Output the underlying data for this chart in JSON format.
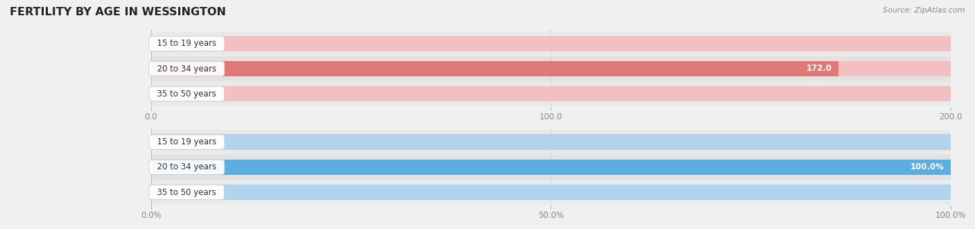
{
  "title": "FERTILITY BY AGE IN WESSINGTON",
  "source": "Source: ZipAtlas.com",
  "top_chart": {
    "categories": [
      "15 to 19 years",
      "20 to 34 years",
      "35 to 50 years"
    ],
    "values": [
      0.0,
      172.0,
      0.0
    ],
    "bar_color_full": "#e07878",
    "bar_color_light": "#f2c0c0",
    "xlim": [
      0,
      200.0
    ],
    "xticks": [
      0.0,
      100.0,
      200.0
    ],
    "bar_height": 0.62
  },
  "bottom_chart": {
    "categories": [
      "15 to 19 years",
      "20 to 34 years",
      "35 to 50 years"
    ],
    "values": [
      0.0,
      100.0,
      0.0
    ],
    "bar_color_full": "#5aafe0",
    "bar_color_light": "#b0d4ee",
    "xlim": [
      0,
      100.0
    ],
    "xticks": [
      0.0,
      50.0,
      100.0
    ],
    "xtick_labels": [
      "0.0%",
      "50.0%",
      "100.0%"
    ],
    "bar_height": 0.62
  },
  "background_color": "#f0f0f0",
  "bar_bg_color": "#e8e8e8",
  "label_box_color": "#ffffff",
  "label_box_edge": "#cccccc",
  "title_color": "#222222",
  "source_color": "#888888",
  "tick_color": "#888888",
  "cat_label_color": "#333333",
  "title_fontsize": 11.5,
  "axis_fontsize": 8.5,
  "bar_label_fontsize": 8.5,
  "category_fontsize": 8.5
}
